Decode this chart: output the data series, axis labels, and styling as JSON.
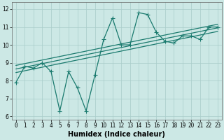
{
  "xlabel": "Humidex (Indice chaleur)",
  "bg_color": "#cce8e5",
  "line_color": "#1a7a6e",
  "grid_color": "#a8ccc9",
  "xlim": [
    -0.5,
    23.5
  ],
  "ylim": [
    5.8,
    12.4
  ],
  "xticks": [
    0,
    1,
    2,
    3,
    4,
    5,
    6,
    7,
    8,
    9,
    10,
    11,
    12,
    13,
    14,
    15,
    16,
    17,
    18,
    19,
    20,
    21,
    22,
    23
  ],
  "yticks": [
    6,
    7,
    8,
    9,
    10,
    11,
    12
  ],
  "main_x": [
    0,
    1,
    2,
    3,
    4,
    5,
    6,
    7,
    8,
    9,
    10,
    11,
    12,
    13,
    14,
    15,
    16,
    17,
    18,
    19,
    20,
    21,
    22,
    23
  ],
  "main_y": [
    7.9,
    8.8,
    8.7,
    9.0,
    8.5,
    6.3,
    8.5,
    7.6,
    6.3,
    8.3,
    10.3,
    11.5,
    10.0,
    10.0,
    11.8,
    11.7,
    10.7,
    10.2,
    10.1,
    10.5,
    10.5,
    10.3,
    11.0,
    11.0
  ],
  "reg_lines": [
    {
      "x": [
        0,
        23
      ],
      "y": [
        8.45,
        10.75
      ]
    },
    {
      "x": [
        0,
        23
      ],
      "y": [
        8.65,
        10.95
      ]
    },
    {
      "x": [
        0,
        23
      ],
      "y": [
        8.85,
        11.15
      ]
    }
  ],
  "marker_size": 4,
  "line_width": 0.9,
  "tick_fontsize": 5.5,
  "xlabel_fontsize": 7
}
